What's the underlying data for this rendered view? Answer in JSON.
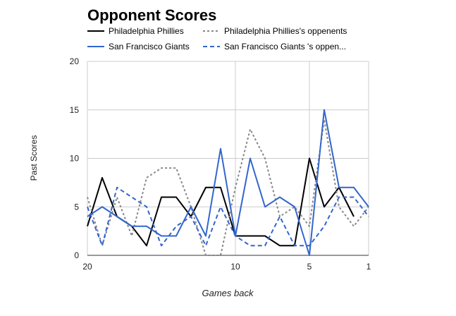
{
  "chart_data": {
    "type": "line",
    "title": "Opponent Scores",
    "xlabel": "Games back",
    "ylabel": "Past Scores",
    "x": [
      20,
      19,
      18,
      17,
      16,
      15,
      14,
      13,
      12,
      11,
      10,
      9,
      8,
      7,
      6,
      5,
      4,
      3,
      2,
      1
    ],
    "xlim": [
      20,
      1
    ],
    "ylim": [
      0,
      20
    ],
    "x_ticks": [
      20,
      10,
      5,
      1
    ],
    "y_ticks": [
      0,
      5,
      10,
      15,
      20
    ],
    "grid": true,
    "legend_position": "top",
    "series": [
      {
        "name": "Philadelphia Phillies",
        "color": "#000000",
        "dash": "solid",
        "values": [
          3,
          8,
          4,
          3,
          1,
          6,
          6,
          4,
          7,
          7,
          2,
          2,
          2,
          1,
          1,
          10,
          5,
          7,
          4,
          null
        ]
      },
      {
        "name": "Philadelphia Phillies's oppenents",
        "color": "#888888",
        "dash": "dotted",
        "values": [
          6,
          1,
          6,
          2,
          8,
          9,
          9,
          5,
          0,
          0,
          7,
          13,
          10,
          4,
          5,
          3,
          14,
          5,
          3,
          5
        ]
      },
      {
        "name": "San Francisco Giants",
        "color": "#3366cc",
        "dash": "solid",
        "values": [
          4,
          5,
          4,
          3,
          3,
          2,
          2,
          5,
          2,
          11,
          2,
          10,
          5,
          6,
          5,
          0,
          15,
          7,
          7,
          5
        ]
      },
      {
        "name": "San Francisco Giants 's oppen...",
        "color": "#3366cc",
        "dash": "dashed",
        "values": [
          5,
          1,
          7,
          6,
          5,
          1,
          3,
          4,
          1,
          5,
          2,
          1,
          1,
          4,
          1,
          1,
          3,
          6,
          6,
          4
        ]
      }
    ]
  }
}
